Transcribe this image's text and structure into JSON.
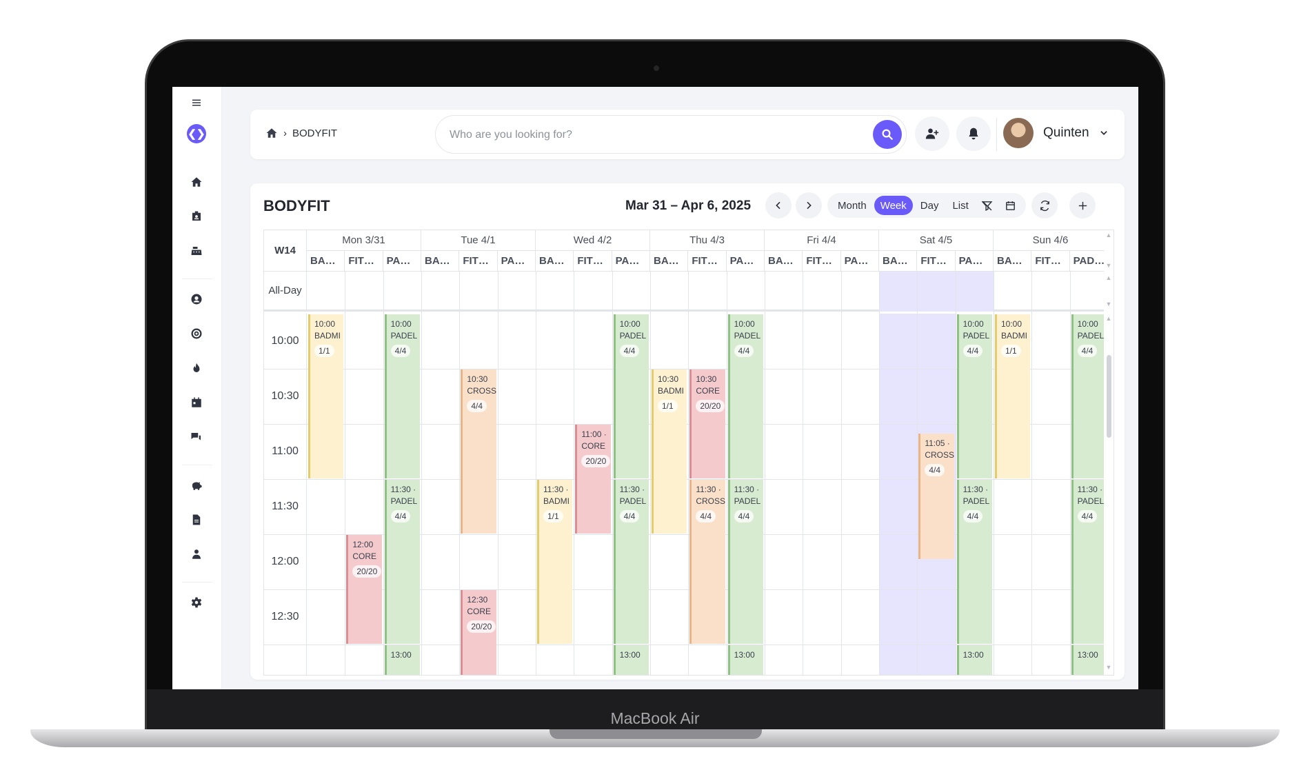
{
  "device": {
    "label": "MacBook Air"
  },
  "sidebar": {
    "menu_icon": "menu-icon",
    "logo_icon": "logo-icon",
    "items": [
      {
        "icon": "home-icon"
      },
      {
        "icon": "id-badge-icon"
      },
      {
        "icon": "cash-register-icon"
      },
      {
        "icon": "user-circle-icon"
      },
      {
        "icon": "target-icon"
      },
      {
        "icon": "fire-icon"
      },
      {
        "icon": "calendar-icon"
      },
      {
        "icon": "chat-icon"
      },
      {
        "icon": "piggy-bank-icon"
      },
      {
        "icon": "document-icon"
      },
      {
        "icon": "user-tie-icon"
      },
      {
        "icon": "gear-icon"
      }
    ]
  },
  "topbar": {
    "breadcrumb": {
      "home_icon": "home-icon",
      "separator": "›",
      "current": "BODYFIT"
    },
    "search": {
      "placeholder": "Who are you looking for?",
      "value": "",
      "icon": "search-icon"
    },
    "add_user_icon": "user-plus-icon",
    "bell_icon": "bell-icon",
    "user": {
      "name": "Quinten",
      "dropdown_icon": "chevron-down-icon"
    }
  },
  "calendar": {
    "title": "BODYFIT",
    "date_range": "Mar 31 – Apr 6, 2025",
    "views": [
      "Month",
      "Week",
      "Day",
      "List"
    ],
    "active_view": "Week",
    "week_label": "W14",
    "all_day_label": "All-Day",
    "days": [
      {
        "label": "Mon 3/31",
        "resources": [
          "BA…",
          "FIT…",
          "PA…"
        ]
      },
      {
        "label": "Tue 4/1",
        "resources": [
          "BA…",
          "FIT…",
          "PA…"
        ]
      },
      {
        "label": "Wed 4/2",
        "resources": [
          "BA…",
          "FIT…",
          "PA…"
        ]
      },
      {
        "label": "Thu 4/3",
        "resources": [
          "BA…",
          "FIT…",
          "PA…"
        ]
      },
      {
        "label": "Fri 4/4",
        "resources": [
          "BA…",
          "FIT…",
          "PA…"
        ]
      },
      {
        "label": "Sat 4/5",
        "resources": [
          "BA…",
          "FIT…",
          "PA…"
        ]
      },
      {
        "label": "Sun 4/6",
        "resources": [
          "BA…",
          "FIT…",
          "PAD…"
        ]
      }
    ],
    "times": [
      "10:00",
      "10:30",
      "11:00",
      "11:30",
      "12:00",
      "12:30"
    ],
    "events": [
      {
        "day": 0,
        "res": 0,
        "start": "10:00",
        "dur": 3,
        "time": "10:00",
        "name": "BADMI",
        "cap": "1/1",
        "color": "yellow"
      },
      {
        "day": 0,
        "res": 2,
        "start": "10:00",
        "dur": 3,
        "time": "10:00",
        "name": "PADEL",
        "cap": "4/4",
        "color": "green"
      },
      {
        "day": 0,
        "res": 2,
        "start": "11:30",
        "dur": 3,
        "time": "11:30 ·",
        "name": "PADEL",
        "cap": "4/4",
        "color": "green"
      },
      {
        "day": 0,
        "res": 1,
        "start": "12:00",
        "dur": 2,
        "time": "12:00",
        "name": "CORE",
        "cap": "20/20",
        "color": "red"
      },
      {
        "day": 0,
        "res": 2,
        "start": "13:00",
        "dur": 1,
        "time": "13:00",
        "name": "",
        "cap": "",
        "color": "green"
      },
      {
        "day": 1,
        "res": 1,
        "start": "10:30",
        "dur": 3,
        "time": "10:30",
        "name": "CROSS",
        "cap": "4/4",
        "color": "orange"
      },
      {
        "day": 1,
        "res": 1,
        "start": "12:30",
        "dur": 2,
        "time": "12:30",
        "name": "CORE",
        "cap": "20/20",
        "color": "red"
      },
      {
        "day": 2,
        "res": 1,
        "start": "11:00",
        "dur": 2,
        "time": "11:00 ·",
        "name": "CORE",
        "cap": "20/20",
        "color": "red"
      },
      {
        "day": 2,
        "res": 0,
        "start": "11:30",
        "dur": 3,
        "time": "11:30 ·",
        "name": "BADMI",
        "cap": "1/1",
        "color": "yellow"
      },
      {
        "day": 2,
        "res": 2,
        "start": "10:00",
        "dur": 3,
        "time": "10:00",
        "name": "PADEL",
        "cap": "4/4",
        "color": "green"
      },
      {
        "day": 2,
        "res": 2,
        "start": "11:30",
        "dur": 3,
        "time": "11:30 ·",
        "name": "PADEL",
        "cap": "4/4",
        "color": "green"
      },
      {
        "day": 2,
        "res": 2,
        "start": "13:00",
        "dur": 1,
        "time": "13:00",
        "name": "",
        "cap": "",
        "color": "green"
      },
      {
        "day": 3,
        "res": 0,
        "start": "10:30",
        "dur": 3,
        "time": "10:30",
        "name": "BADMI",
        "cap": "1/1",
        "color": "yellow"
      },
      {
        "day": 3,
        "res": 1,
        "start": "10:30",
        "dur": 2,
        "time": "10:30",
        "name": "CORE",
        "cap": "20/20",
        "color": "red"
      },
      {
        "day": 3,
        "res": 1,
        "start": "11:30",
        "dur": 3,
        "time": "11:30 ·",
        "name": "CROSS",
        "cap": "4/4",
        "color": "orange"
      },
      {
        "day": 3,
        "res": 2,
        "start": "10:00",
        "dur": 3,
        "time": "10:00",
        "name": "PADEL",
        "cap": "4/4",
        "color": "green"
      },
      {
        "day": 3,
        "res": 2,
        "start": "11:30",
        "dur": 3,
        "time": "11:30 ·",
        "name": "PADEL",
        "cap": "4/4",
        "color": "green"
      },
      {
        "day": 3,
        "res": 2,
        "start": "13:00",
        "dur": 1,
        "time": "13:00",
        "name": "",
        "cap": "",
        "color": "green"
      },
      {
        "day": 5,
        "res": 1,
        "start": "11:05",
        "dur": 2.3,
        "time": "11:05 ·",
        "name": "CROSS",
        "cap": "4/4",
        "color": "orange"
      },
      {
        "day": 5,
        "res": 2,
        "start": "10:00",
        "dur": 3,
        "time": "10:00",
        "name": "PADEL",
        "cap": "4/4",
        "color": "green"
      },
      {
        "day": 5,
        "res": 2,
        "start": "11:30",
        "dur": 3,
        "time": "11:30 ·",
        "name": "PADEL",
        "cap": "4/4",
        "color": "green"
      },
      {
        "day": 5,
        "res": 2,
        "start": "13:00",
        "dur": 1,
        "time": "13:00",
        "name": "",
        "cap": "",
        "color": "green"
      },
      {
        "day": 6,
        "res": 0,
        "start": "10:00",
        "dur": 3,
        "time": "10:00",
        "name": "BADMI",
        "cap": "1/1",
        "color": "yellow"
      },
      {
        "day": 6,
        "res": 2,
        "start": "10:00",
        "dur": 3,
        "time": "10:00",
        "name": "PADEL",
        "cap": "4/4",
        "color": "green"
      },
      {
        "day": 6,
        "res": 2,
        "start": "11:30",
        "dur": 3,
        "time": "11:30 ·",
        "name": "PADEL",
        "cap": "4/4",
        "color": "green"
      },
      {
        "day": 6,
        "res": 2,
        "start": "13:00",
        "dur": 1,
        "time": "13:00",
        "name": "",
        "cap": "",
        "color": "green"
      }
    ],
    "colors": {
      "accent": "#6a5af9",
      "today_tint": "#e7e5fd"
    }
  }
}
